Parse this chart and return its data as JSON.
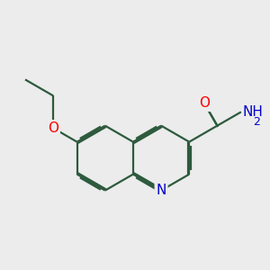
{
  "background_color": "#ececec",
  "bond_color": "#2d5a3d",
  "bond_width": 1.6,
  "atom_colors": {
    "O": "#ff0000",
    "N": "#0000cc",
    "C": "#2d5a3d",
    "H": "#2d5a3d"
  },
  "font_size": 10
}
